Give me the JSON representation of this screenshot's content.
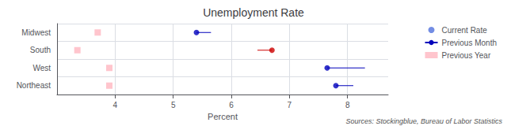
{
  "chart_data": {
    "type": "dot",
    "orientation": "horizontal",
    "title": "Unemployment Rate",
    "xlabel": "Percent",
    "annotation": "Sources: Stockingblue, Bureau of Labor Statistics",
    "categories": [
      "Midwest",
      "South",
      "West",
      "Northeast"
    ],
    "series": [
      {
        "name": "Current Rate",
        "type": "dot",
        "marker": "circle",
        "values": [
          5.4,
          6.7,
          7.65,
          7.8
        ],
        "colors": [
          "#0000bb",
          "#cc0000",
          "#0000bb",
          "#0000bb"
        ]
      },
      {
        "name": "Previous Month",
        "type": "segment",
        "line_style": "solid",
        "values": [
          5.65,
          6.45,
          8.3,
          8.1
        ],
        "colors": [
          "#0000bb",
          "#cc0000",
          "#0000bb",
          "#0000bb"
        ]
      },
      {
        "name": "Previous Year",
        "type": "dot",
        "marker": "square",
        "values": [
          3.7,
          3.35,
          3.9,
          3.9
        ],
        "color": "#ffb6c1"
      }
    ],
    "xlim": [
      3.0,
      8.7
    ],
    "xticks": [
      4,
      5,
      6,
      7,
      8
    ],
    "grid": true,
    "legend": "upper right"
  }
}
